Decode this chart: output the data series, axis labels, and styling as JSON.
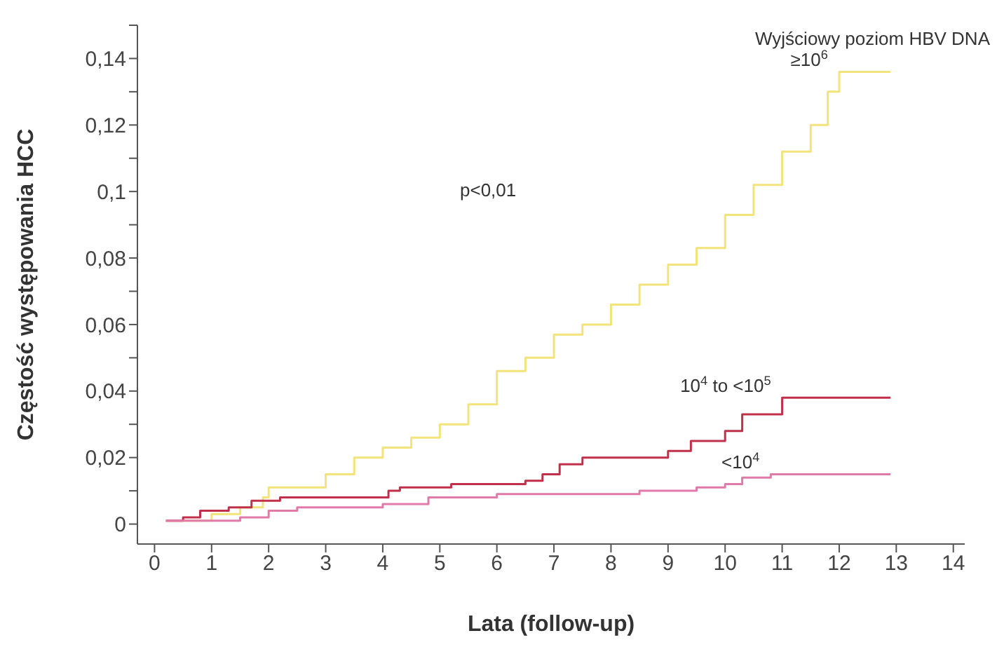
{
  "chart_data": {
    "type": "step",
    "xlabel": "Lata (follow-up)",
    "ylabel": "Częstość występowania HCC",
    "legend_title": "Wyjściowy poziom HBV DNA",
    "annotations": [
      "p<0,01"
    ],
    "xlim": [
      -0.3,
      14.2
    ],
    "xticks": [
      0,
      1,
      2,
      3,
      4,
      5,
      6,
      7,
      8,
      9,
      10,
      11,
      12,
      13,
      14
    ],
    "ylim": [
      -0.006,
      0.15
    ],
    "yticks": [
      0,
      {
        "value": 0.01,
        "label": null
      },
      {
        "value": 0.02,
        "label": "0,02"
      },
      {
        "value": 0.03,
        "label": null
      },
      {
        "value": 0.04,
        "label": "0,04"
      },
      {
        "value": 0.05,
        "label": null
      },
      {
        "value": 0.06,
        "label": "0,06"
      },
      {
        "value": 0.07,
        "label": null
      },
      {
        "value": 0.08,
        "label": "0,08"
      },
      {
        "value": 0.09,
        "label": null
      },
      {
        "value": 0.1,
        "label": "0,1"
      },
      {
        "value": 0.11,
        "label": null
      },
      {
        "value": 0.12,
        "label": "0,12"
      },
      {
        "value": 0.13,
        "label": null
      },
      {
        "value": 0.14,
        "label": "0,14"
      },
      {
        "value": 0.15,
        "label": null
      }
    ],
    "grid": false,
    "legend": false,
    "marker": "none",
    "line_style": "solid",
    "series": [
      {
        "name": "≥10$^{6}$",
        "color": "#f2e37a",
        "x": [
          0.2,
          1,
          1.5,
          1.9,
          2,
          3,
          3.5,
          4,
          4.5,
          5,
          5.5,
          6,
          6.5,
          7,
          7.5,
          8,
          8.5,
          9,
          9.5,
          10,
          10.5,
          11,
          11.5,
          11.8,
          12,
          12.9
        ],
        "values": [
          0.001,
          0.003,
          0.005,
          0.008,
          0.011,
          0.015,
          0.02,
          0.023,
          0.026,
          0.03,
          0.036,
          0.046,
          0.05,
          0.057,
          0.06,
          0.066,
          0.072,
          0.078,
          0.083,
          0.093,
          0.102,
          0.112,
          0.12,
          0.13,
          0.136,
          0.136
        ]
      },
      {
        "name": "10$^{4}$ to <10$^{5}$",
        "color": "#c0304a",
        "x": [
          0.2,
          0.5,
          0.8,
          1.3,
          1.7,
          2.2,
          4.1,
          4.3,
          5.2,
          6.5,
          6.8,
          7.1,
          7.5,
          8.3,
          9,
          9.4,
          10,
          10.3,
          11,
          12.9
        ],
        "values": [
          0.001,
          0.002,
          0.004,
          0.005,
          0.007,
          0.008,
          0.01,
          0.011,
          0.012,
          0.013,
          0.015,
          0.018,
          0.02,
          0.02,
          0.022,
          0.025,
          0.028,
          0.033,
          0.038,
          0.038
        ]
      },
      {
        "name": "<10$^{4}$",
        "color": "#e07aa8",
        "x": [
          0.2,
          1.5,
          2,
          2.5,
          4,
          4.8,
          6,
          7.5,
          8.5,
          9.5,
          10,
          10.3,
          10.8,
          12.9
        ],
        "values": [
          0.001,
          0.002,
          0.004,
          0.005,
          0.006,
          0.008,
          0.009,
          0.009,
          0.01,
          0.011,
          0.012,
          0.014,
          0.015,
          0.015
        ]
      }
    ]
  }
}
